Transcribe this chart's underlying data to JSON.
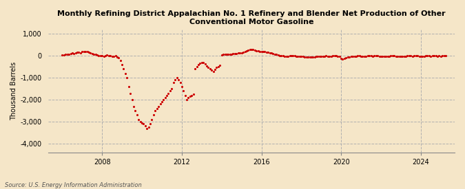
{
  "title": "Monthly Refining District Appalachian No. 1 Refinery and Blender Net Production of Other\nConventional Motor Gasoline",
  "ylabel": "Thousand Barrels",
  "source": "Source: U.S. Energy Information Administration",
  "background_color": "#f5e6c8",
  "plot_bg_color": "#f5e6c8",
  "dot_color": "#cc0000",
  "ylim": [
    -4400,
    1200
  ],
  "yticks": [
    -4000,
    -3000,
    -2000,
    -1000,
    0,
    1000
  ],
  "ytick_labels": [
    "-4,000",
    "-3,000",
    "-2,000",
    "-1,000",
    "0",
    "1,000"
  ],
  "xlim_start": 2005.3,
  "xlim_end": 2025.7,
  "xticks": [
    2008,
    2012,
    2016,
    2020,
    2024
  ],
  "data_points": [
    [
      2006.0,
      50
    ],
    [
      2006.08,
      30
    ],
    [
      2006.17,
      60
    ],
    [
      2006.25,
      80
    ],
    [
      2006.33,
      70
    ],
    [
      2006.42,
      100
    ],
    [
      2006.5,
      120
    ],
    [
      2006.58,
      90
    ],
    [
      2006.67,
      140
    ],
    [
      2006.75,
      160
    ],
    [
      2006.83,
      150
    ],
    [
      2006.92,
      130
    ],
    [
      2007.0,
      180
    ],
    [
      2007.08,
      200
    ],
    [
      2007.17,
      210
    ],
    [
      2007.25,
      190
    ],
    [
      2007.33,
      160
    ],
    [
      2007.42,
      140
    ],
    [
      2007.5,
      100
    ],
    [
      2007.58,
      80
    ],
    [
      2007.67,
      60
    ],
    [
      2007.75,
      40
    ],
    [
      2007.83,
      20
    ],
    [
      2007.92,
      10
    ],
    [
      2008.0,
      5
    ],
    [
      2008.08,
      -30
    ],
    [
      2008.17,
      20
    ],
    [
      2008.25,
      40
    ],
    [
      2008.33,
      20
    ],
    [
      2008.42,
      0
    ],
    [
      2008.5,
      -10
    ],
    [
      2008.58,
      -20
    ],
    [
      2008.67,
      0
    ],
    [
      2008.75,
      -50
    ],
    [
      2008.83,
      -100
    ],
    [
      2008.92,
      -200
    ],
    [
      2009.0,
      -400
    ],
    [
      2009.08,
      -600
    ],
    [
      2009.17,
      -800
    ],
    [
      2009.25,
      -1000
    ],
    [
      2009.33,
      -1400
    ],
    [
      2009.42,
      -1700
    ],
    [
      2009.5,
      -2000
    ],
    [
      2009.58,
      -2300
    ],
    [
      2009.67,
      -2500
    ],
    [
      2009.75,
      -2700
    ],
    [
      2009.83,
      -2900
    ],
    [
      2009.92,
      -3000
    ],
    [
      2010.0,
      -3050
    ],
    [
      2010.08,
      -3100
    ],
    [
      2010.17,
      -3200
    ],
    [
      2010.25,
      -3300
    ],
    [
      2010.33,
      -3250
    ],
    [
      2010.42,
      -3100
    ],
    [
      2010.5,
      -2900
    ],
    [
      2010.58,
      -2700
    ],
    [
      2010.67,
      -2500
    ],
    [
      2010.75,
      -2400
    ],
    [
      2010.83,
      -2300
    ],
    [
      2010.92,
      -2200
    ],
    [
      2011.0,
      -2100
    ],
    [
      2011.08,
      -2000
    ],
    [
      2011.17,
      -1900
    ],
    [
      2011.25,
      -1800
    ],
    [
      2011.33,
      -1700
    ],
    [
      2011.42,
      -1600
    ],
    [
      2011.5,
      -1500
    ],
    [
      2011.58,
      -1200
    ],
    [
      2011.67,
      -1100
    ],
    [
      2011.75,
      -1000
    ],
    [
      2011.83,
      -1100
    ],
    [
      2011.92,
      -1200
    ],
    [
      2012.0,
      -1400
    ],
    [
      2012.08,
      -1600
    ],
    [
      2012.17,
      -1800
    ],
    [
      2012.25,
      -2000
    ],
    [
      2012.33,
      -1900
    ],
    [
      2012.42,
      -1850
    ],
    [
      2012.5,
      -1800
    ],
    [
      2012.58,
      -1750
    ],
    [
      2012.67,
      -600
    ],
    [
      2012.75,
      -500
    ],
    [
      2012.83,
      -400
    ],
    [
      2012.92,
      -350
    ],
    [
      2013.0,
      -320
    ],
    [
      2013.08,
      -290
    ],
    [
      2013.17,
      -380
    ],
    [
      2013.25,
      -470
    ],
    [
      2013.33,
      -520
    ],
    [
      2013.42,
      -580
    ],
    [
      2013.5,
      -650
    ],
    [
      2013.58,
      -700
    ],
    [
      2013.67,
      -620
    ],
    [
      2013.75,
      -540
    ],
    [
      2013.83,
      -480
    ],
    [
      2013.92,
      -420
    ],
    [
      2014.0,
      40
    ],
    [
      2014.08,
      80
    ],
    [
      2014.17,
      60
    ],
    [
      2014.25,
      80
    ],
    [
      2014.33,
      60
    ],
    [
      2014.42,
      70
    ],
    [
      2014.5,
      80
    ],
    [
      2014.58,
      90
    ],
    [
      2014.67,
      100
    ],
    [
      2014.75,
      110
    ],
    [
      2014.83,
      120
    ],
    [
      2014.92,
      130
    ],
    [
      2015.0,
      140
    ],
    [
      2015.08,
      160
    ],
    [
      2015.17,
      200
    ],
    [
      2015.25,
      230
    ],
    [
      2015.33,
      260
    ],
    [
      2015.42,
      280
    ],
    [
      2015.5,
      300
    ],
    [
      2015.58,
      280
    ],
    [
      2015.67,
      260
    ],
    [
      2015.75,
      240
    ],
    [
      2015.83,
      220
    ],
    [
      2015.92,
      210
    ],
    [
      2016.0,
      200
    ],
    [
      2016.08,
      190
    ],
    [
      2016.17,
      180
    ],
    [
      2016.25,
      160
    ],
    [
      2016.33,
      150
    ],
    [
      2016.42,
      140
    ],
    [
      2016.5,
      120
    ],
    [
      2016.58,
      100
    ],
    [
      2016.67,
      80
    ],
    [
      2016.75,
      60
    ],
    [
      2016.83,
      40
    ],
    [
      2016.92,
      20
    ],
    [
      2017.0,
      10
    ],
    [
      2017.08,
      0
    ],
    [
      2017.17,
      -10
    ],
    [
      2017.25,
      -20
    ],
    [
      2017.33,
      -10
    ],
    [
      2017.42,
      0
    ],
    [
      2017.5,
      10
    ],
    [
      2017.58,
      5
    ],
    [
      2017.67,
      -5
    ],
    [
      2017.75,
      -10
    ],
    [
      2017.83,
      -15
    ],
    [
      2017.92,
      -10
    ],
    [
      2018.0,
      -20
    ],
    [
      2018.08,
      -30
    ],
    [
      2018.17,
      -40
    ],
    [
      2018.25,
      -50
    ],
    [
      2018.33,
      -60
    ],
    [
      2018.42,
      -55
    ],
    [
      2018.5,
      -50
    ],
    [
      2018.58,
      -45
    ],
    [
      2018.67,
      -40
    ],
    [
      2018.75,
      -35
    ],
    [
      2018.83,
      -30
    ],
    [
      2018.92,
      -25
    ],
    [
      2019.0,
      -20
    ],
    [
      2019.08,
      -15
    ],
    [
      2019.17,
      -10
    ],
    [
      2019.25,
      -5
    ],
    [
      2019.33,
      -10
    ],
    [
      2019.42,
      -15
    ],
    [
      2019.5,
      -10
    ],
    [
      2019.58,
      -5
    ],
    [
      2019.67,
      0
    ],
    [
      2019.75,
      -5
    ],
    [
      2019.83,
      -10
    ],
    [
      2019.92,
      -15
    ],
    [
      2020.0,
      -120
    ],
    [
      2020.08,
      -150
    ],
    [
      2020.17,
      -130
    ],
    [
      2020.25,
      -100
    ],
    [
      2020.33,
      -70
    ],
    [
      2020.42,
      -50
    ],
    [
      2020.5,
      -30
    ],
    [
      2020.58,
      -20
    ],
    [
      2020.67,
      -15
    ],
    [
      2020.75,
      -10
    ],
    [
      2020.83,
      -5
    ],
    [
      2020.92,
      0
    ],
    [
      2021.0,
      -10
    ],
    [
      2021.08,
      -20
    ],
    [
      2021.17,
      -15
    ],
    [
      2021.25,
      -10
    ],
    [
      2021.33,
      -5
    ],
    [
      2021.42,
      0
    ],
    [
      2021.5,
      -5
    ],
    [
      2021.58,
      -10
    ],
    [
      2021.67,
      -5
    ],
    [
      2021.75,
      0
    ],
    [
      2021.83,
      -5
    ],
    [
      2021.92,
      -10
    ],
    [
      2022.0,
      -20
    ],
    [
      2022.08,
      -30
    ],
    [
      2022.17,
      -25
    ],
    [
      2022.25,
      -20
    ],
    [
      2022.33,
      -15
    ],
    [
      2022.42,
      -10
    ],
    [
      2022.5,
      -5
    ],
    [
      2022.58,
      0
    ],
    [
      2022.67,
      -5
    ],
    [
      2022.75,
      -10
    ],
    [
      2022.83,
      -15
    ],
    [
      2022.92,
      -20
    ],
    [
      2023.0,
      -15
    ],
    [
      2023.08,
      -10
    ],
    [
      2023.17,
      -15
    ],
    [
      2023.25,
      -10
    ],
    [
      2023.33,
      -5
    ],
    [
      2023.42,
      0
    ],
    [
      2023.5,
      -5
    ],
    [
      2023.58,
      -10
    ],
    [
      2023.67,
      -5
    ],
    [
      2023.75,
      0
    ],
    [
      2023.83,
      -5
    ],
    [
      2023.92,
      -10
    ],
    [
      2024.0,
      -10
    ],
    [
      2024.08,
      -15
    ],
    [
      2024.17,
      -10
    ],
    [
      2024.25,
      -5
    ],
    [
      2024.33,
      0
    ],
    [
      2024.42,
      -5
    ],
    [
      2024.5,
      -10
    ],
    [
      2024.58,
      -5
    ],
    [
      2024.67,
      0
    ],
    [
      2024.75,
      -5
    ],
    [
      2024.83,
      -10
    ],
    [
      2024.92,
      -5
    ],
    [
      2025.0,
      -10
    ],
    [
      2025.08,
      -5
    ],
    [
      2025.17,
      0
    ],
    [
      2025.25,
      -5
    ]
  ]
}
